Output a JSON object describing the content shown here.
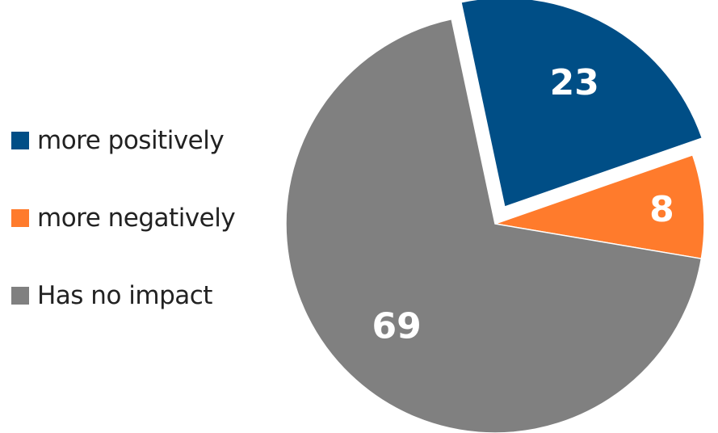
{
  "chart_data": {
    "type": "pie",
    "title": "",
    "legend_position": "left",
    "slices": [
      {
        "name": "more positively",
        "value": 23,
        "color": "#004E86",
        "exploded": true
      },
      {
        "name": "more negatively",
        "value": 8,
        "color": "#FF7B2C",
        "exploded": false
      },
      {
        "name": "Has no impact",
        "value": 69,
        "color": "#808080",
        "exploded": false
      }
    ],
    "data_labels": [
      "23",
      "8",
      "69"
    ]
  }
}
